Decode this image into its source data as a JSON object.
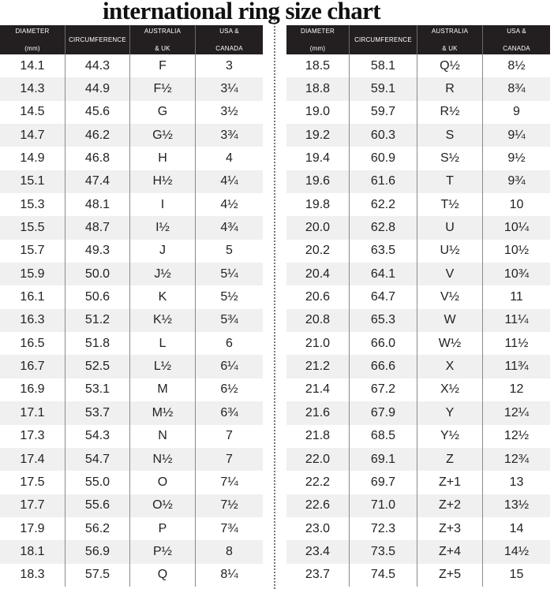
{
  "title": "international ring size chart",
  "headers": [
    [
      "DIAMETER",
      "(mm)"
    ],
    [
      "CIRCUMFERENCE",
      ""
    ],
    [
      "AUSTRALIA",
      "& UK"
    ],
    [
      "USA &",
      "CANADA"
    ]
  ],
  "left_rows": [
    [
      "14.1",
      "44.3",
      "F",
      "3"
    ],
    [
      "14.3",
      "44.9",
      "F½",
      "3¼"
    ],
    [
      "14.5",
      "45.6",
      "G",
      "3½"
    ],
    [
      "14.7",
      "46.2",
      "G½",
      "3¾"
    ],
    [
      "14.9",
      "46.8",
      "H",
      "4"
    ],
    [
      "15.1",
      "47.4",
      "H½",
      "4¼"
    ],
    [
      "15.3",
      "48.1",
      "I",
      "4½"
    ],
    [
      "15.5",
      "48.7",
      "I½",
      "4¾"
    ],
    [
      "15.7",
      "49.3",
      "J",
      "5"
    ],
    [
      "15.9",
      "50.0",
      "J½",
      "5¼"
    ],
    [
      "16.1",
      "50.6",
      "K",
      "5½"
    ],
    [
      "16.3",
      "51.2",
      "K½",
      "5¾"
    ],
    [
      "16.5",
      "51.8",
      "L",
      "6"
    ],
    [
      "16.7",
      "52.5",
      "L½",
      "6¼"
    ],
    [
      "16.9",
      "53.1",
      "M",
      "6½"
    ],
    [
      "17.1",
      "53.7",
      "M½",
      "6¾"
    ],
    [
      "17.3",
      "54.3",
      "N",
      "7"
    ],
    [
      "17.4",
      "54.7",
      "N½",
      "7"
    ],
    [
      "17.5",
      "55.0",
      "O",
      "7¼"
    ],
    [
      "17.7",
      "55.6",
      "O½",
      "7½"
    ],
    [
      "17.9",
      "56.2",
      "P",
      "7¾"
    ],
    [
      "18.1",
      "56.9",
      "P½",
      "8"
    ],
    [
      "18.3",
      "57.5",
      "Q",
      "8¼"
    ]
  ],
  "right_rows": [
    [
      "18.5",
      "58.1",
      "Q½",
      "8½"
    ],
    [
      "18.8",
      "59.1",
      "R",
      "8¾"
    ],
    [
      "19.0",
      "59.7",
      "R½",
      "9"
    ],
    [
      "19.2",
      "60.3",
      "S",
      "9¼"
    ],
    [
      "19.4",
      "60.9",
      "S½",
      "9½"
    ],
    [
      "19.6",
      "61.6",
      "T",
      "9¾"
    ],
    [
      "19.8",
      "62.2",
      "T½",
      "10"
    ],
    [
      "20.0",
      "62.8",
      "U",
      "10¼"
    ],
    [
      "20.2",
      "63.5",
      "U½",
      "10½"
    ],
    [
      "20.4",
      "64.1",
      "V",
      "10¾"
    ],
    [
      "20.6",
      "64.7",
      "V½",
      "11"
    ],
    [
      "20.8",
      "65.3",
      "W",
      "11¼"
    ],
    [
      "21.0",
      "66.0",
      "W½",
      "11½"
    ],
    [
      "21.2",
      "66.6",
      "X",
      "11¾"
    ],
    [
      "21.4",
      "67.2",
      "X½",
      "12"
    ],
    [
      "21.6",
      "67.9",
      "Y",
      "12¼"
    ],
    [
      "21.8",
      "68.5",
      "Y½",
      "12½"
    ],
    [
      "22.0",
      "69.1",
      "Z",
      "12¾"
    ],
    [
      "22.2",
      "69.7",
      "Z+1",
      "13"
    ],
    [
      "22.6",
      "71.0",
      "Z+2",
      "13½"
    ],
    [
      "23.0",
      "72.3",
      "Z+3",
      "14"
    ],
    [
      "23.4",
      "73.5",
      "Z+4",
      "14½"
    ],
    [
      "23.7",
      "74.5",
      "Z+5",
      "15"
    ]
  ]
}
